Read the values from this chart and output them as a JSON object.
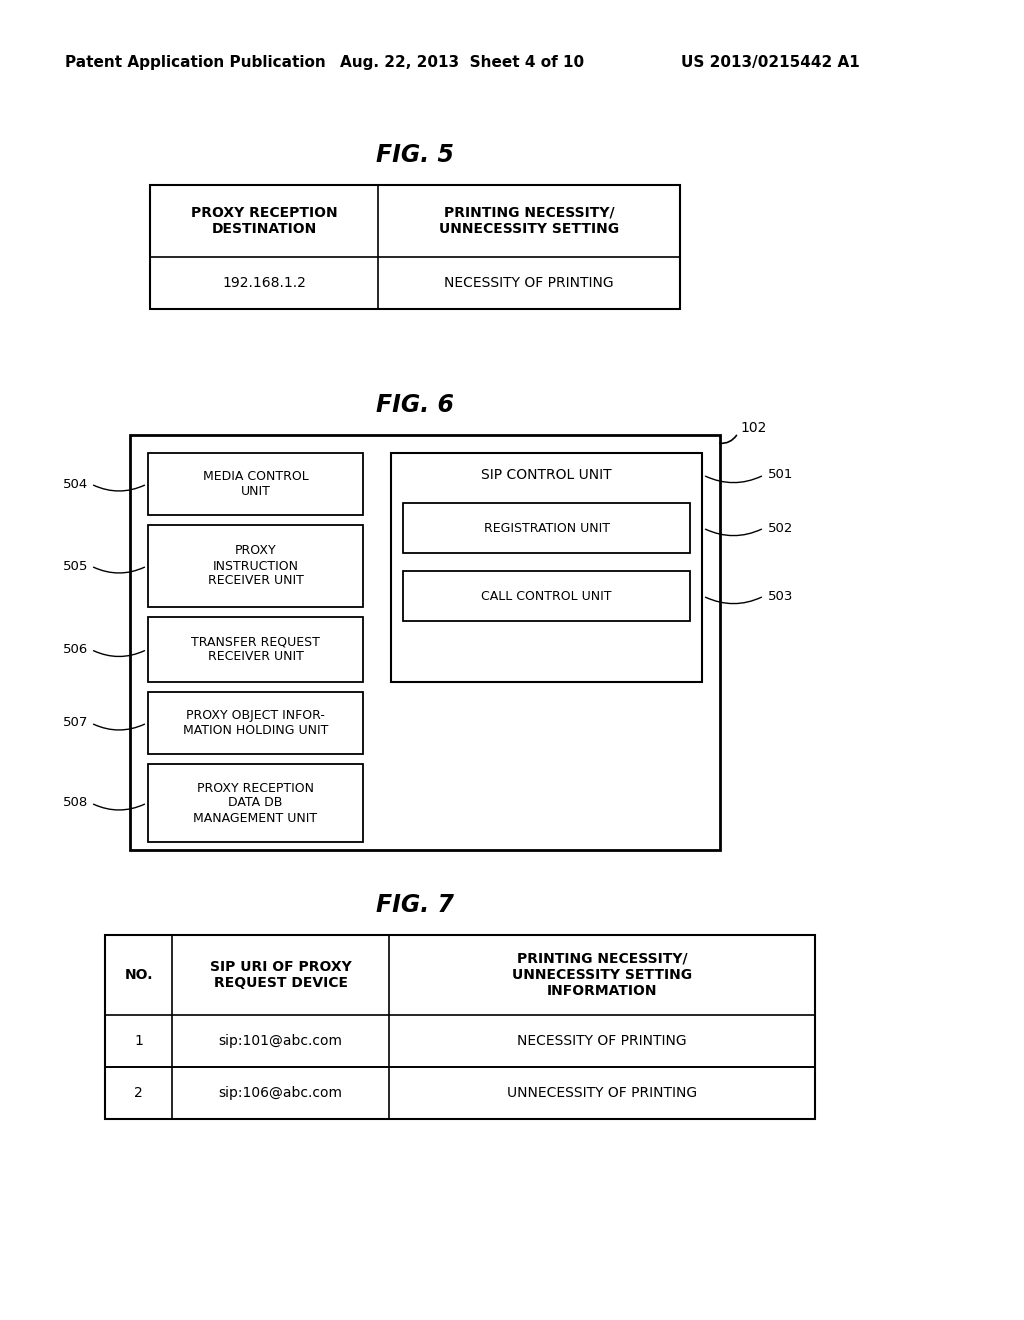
{
  "bg_color": "#ffffff",
  "header_left": "Patent Application Publication",
  "header_center": "Aug. 22, 2013  Sheet 4 of 10",
  "header_right": "US 2013/0215442 A1",
  "fig5_title": "FIG. 5",
  "fig5_col1_header": "PROXY RECEPTION\nDESTINATION",
  "fig5_col2_header": "PRINTING NECESSITY/\nUNNECESSITY SETTING",
  "fig5_row1_col1": "192.168.1.2",
  "fig5_row1_col2": "NECESSITY OF PRINTING",
  "fig6_title": "FIG. 6",
  "fig6_label_102": "102",
  "fig6_left_boxes": [
    {
      "label": "MEDIA CONTROL\nUNIT",
      "id": "504"
    },
    {
      "label": "PROXY\nINSTRUCTION\nRECEIVER UNIT",
      "id": "505"
    },
    {
      "label": "TRANSFER REQUEST\nRECEIVER UNIT",
      "id": "506"
    },
    {
      "label": "PROXY OBJECT INFOR-\nMATION HOLDING UNIT",
      "id": "507"
    },
    {
      "label": "PROXY RECEPTION\nDATA DB\nMANAGEMENT UNIT",
      "id": "508"
    }
  ],
  "fig6_sip_label": "SIP CONTROL UNIT",
  "fig6_sip_id": "501",
  "fig6_right_boxes": [
    {
      "label": "REGISTRATION UNIT",
      "id": "502"
    },
    {
      "label": "CALL CONTROL UNIT",
      "id": "503"
    }
  ],
  "fig7_title": "FIG. 7",
  "fig7_col1_header": "NO.",
  "fig7_col2_header": "SIP URI OF PROXY\nREQUEST DEVICE",
  "fig7_col3_header": "PRINTING NECESSITY/\nUNNECESSITY SETTING\nINFORMATION",
  "fig7_rows": [
    [
      "1",
      "sip:101@abc.com",
      "NECESSITY OF PRINTING"
    ],
    [
      "2",
      "sip:106@abc.com",
      "UNNECESSITY OF PRINTING"
    ]
  ]
}
